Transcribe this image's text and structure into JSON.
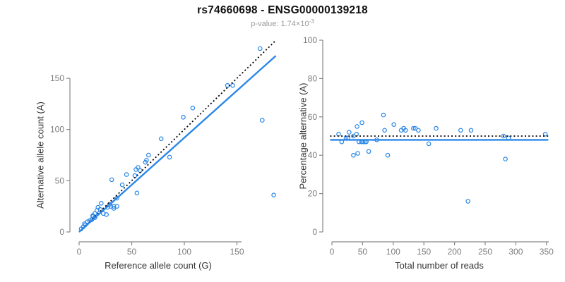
{
  "header": {
    "title": "rs74660698 - ENSG00000139218",
    "subtitle_text": "p-value: 1.74×10",
    "subtitle_exponent": "-3"
  },
  "colors": {
    "point": "#2a87e8",
    "fit_line": "#2a87e8",
    "reference_line": "#000000",
    "axis": "#888888",
    "tick_label": "#7c7c7c"
  },
  "chart_data": [
    {
      "type": "scatter",
      "name": "left",
      "xlabel": "Reference allele count (G)",
      "ylabel": "Alternative allele count (A)",
      "xticks": [
        0,
        50,
        100,
        150
      ],
      "yticks": [
        0,
        50,
        100,
        150
      ],
      "xlim": [
        0,
        187
      ],
      "ylim": [
        0,
        190
      ],
      "legend": "none",
      "grid": false,
      "points": [
        [
          2,
          3
        ],
        [
          4,
          5
        ],
        [
          5,
          8
        ],
        [
          6,
          7
        ],
        [
          8,
          10
        ],
        [
          10,
          11
        ],
        [
          12,
          12
        ],
        [
          13,
          15
        ],
        [
          13,
          16
        ],
        [
          15,
          14
        ],
        [
          15,
          18
        ],
        [
          17,
          21
        ],
        [
          18,
          24
        ],
        [
          20,
          22
        ],
        [
          21,
          28
        ],
        [
          23,
          18
        ],
        [
          26,
          17
        ],
        [
          27,
          24
        ],
        [
          29,
          27
        ],
        [
          30,
          25
        ],
        [
          31,
          51
        ],
        [
          33,
          23
        ],
        [
          33,
          25
        ],
        [
          36,
          25
        ],
        [
          36,
          33
        ],
        [
          41,
          46
        ],
        [
          45,
          56
        ],
        [
          53,
          55
        ],
        [
          54,
          61
        ],
        [
          55,
          38
        ],
        [
          56,
          63
        ],
        [
          58,
          60
        ],
        [
          63,
          68
        ],
        [
          64,
          70
        ],
        [
          66,
          75
        ],
        [
          78,
          91
        ],
        [
          86,
          73
        ],
        [
          99,
          112
        ],
        [
          108,
          121
        ],
        [
          141,
          143
        ],
        [
          146,
          143
        ],
        [
          172,
          179
        ],
        [
          174,
          109
        ],
        [
          185,
          36
        ]
      ],
      "lines": [
        {
          "name": "identity",
          "style": "dotted",
          "color": "#000000",
          "x1": 0,
          "y1": 0,
          "x2": 187,
          "y2": 187
        },
        {
          "name": "fit",
          "style": "solid",
          "color": "#2a87e8",
          "x1": 0,
          "y1": 0,
          "x2": 187,
          "y2": 172
        }
      ]
    },
    {
      "type": "scatter",
      "name": "right",
      "xlabel": "Total number of reads",
      "ylabel": "Percentage alternative (A)",
      "xticks": [
        0,
        50,
        100,
        150,
        200,
        250,
        300,
        350
      ],
      "yticks": [
        0,
        20,
        40,
        60,
        80,
        100
      ],
      "xlim": [
        0,
        355
      ],
      "ylim": [
        0,
        100
      ],
      "legend": "none",
      "grid": false,
      "points": [
        [
          11,
          51
        ],
        [
          16,
          47
        ],
        [
          23,
          49
        ],
        [
          26,
          49
        ],
        [
          28,
          52
        ],
        [
          35,
          50
        ],
        [
          35,
          40
        ],
        [
          40,
          51
        ],
        [
          41,
          55
        ],
        [
          42,
          41
        ],
        [
          44,
          47
        ],
        [
          48,
          47
        ],
        [
          49,
          57
        ],
        [
          51,
          47
        ],
        [
          54,
          47
        ],
        [
          56,
          47
        ],
        [
          60,
          42
        ],
        [
          73,
          48
        ],
        [
          84,
          61
        ],
        [
          86,
          53
        ],
        [
          91,
          40
        ],
        [
          101,
          56
        ],
        [
          113,
          53
        ],
        [
          117,
          54
        ],
        [
          120,
          53
        ],
        [
          133,
          54
        ],
        [
          136,
          54
        ],
        [
          141,
          53
        ],
        [
          158,
          46
        ],
        [
          170,
          54
        ],
        [
          210,
          53
        ],
        [
          222,
          16
        ],
        [
          227,
          53
        ],
        [
          280,
          50
        ],
        [
          283,
          38
        ],
        [
          288,
          49
        ],
        [
          348,
          51
        ]
      ],
      "lines": [
        {
          "name": "null-50pct",
          "style": "dotted",
          "color": "#000000",
          "x1": -3,
          "y1": 50,
          "x2": 353,
          "y2": 50
        },
        {
          "name": "fit",
          "style": "solid",
          "color": "#2a87e8",
          "x1": -3,
          "y1": 48,
          "x2": 353,
          "y2": 48
        }
      ]
    }
  ]
}
